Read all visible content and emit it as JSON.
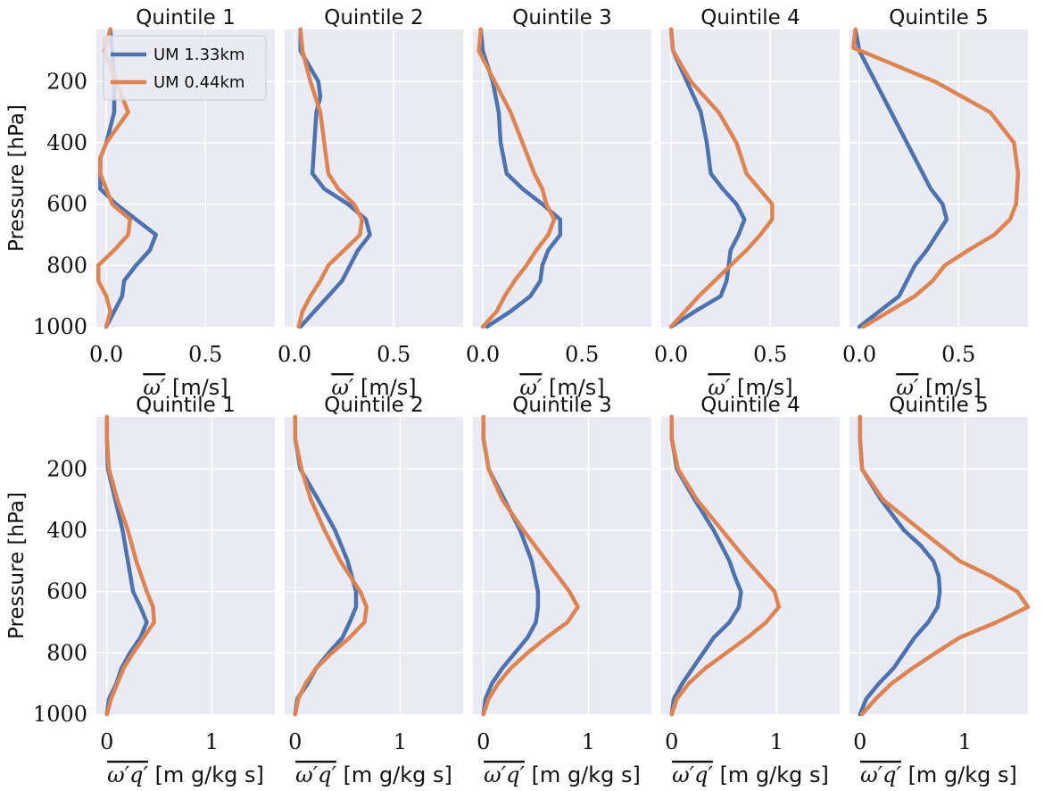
{
  "colors": {
    "um133": "#4c72b0",
    "um044": "#dd8452",
    "panel_bg": "#eaeaf2",
    "grid": "#ffffff"
  },
  "legend": [
    "UM 1.33km",
    "UM 0.44km"
  ],
  "panel_titles": [
    "Quintile 1",
    "Quintile 2",
    "Quintile 3",
    "Quintile 4",
    "Quintile 5"
  ],
  "rows": [
    {
      "ylabel": "Pressure [hPa]",
      "xlabel_symbol": "ω′",
      "xlabel_unit": "[m/s]",
      "xticks": [
        "0.0",
        "0.5"
      ]
    },
    {
      "ylabel": "Pressure [hPa]",
      "xlabel_symbol": "ω′q′",
      "xlabel_unit": "[m g/kg s]",
      "xticks": [
        "0",
        "1"
      ]
    }
  ],
  "yticks": [
    "200",
    "400",
    "600",
    "800",
    "1000"
  ],
  "chart_data": [
    {
      "type": "line",
      "title": "Quintile 1",
      "ylabel": "Pressure [hPa]",
      "xlabel": "ω′ [m/s]",
      "xlim": [
        -0.05,
        0.85
      ],
      "ylim": [
        1000,
        30
      ],
      "xticks": [
        0.0,
        0.5
      ],
      "yticks": [
        200,
        400,
        600,
        800,
        1000
      ],
      "series": [
        {
          "name": "UM 1.33km",
          "pressure": [
            30,
            100,
            200,
            300,
            400,
            450,
            500,
            550,
            600,
            650,
            700,
            750,
            800,
            850,
            900,
            950,
            1000
          ],
          "values": [
            0.02,
            0.03,
            0.04,
            0.04,
            0.0,
            -0.03,
            -0.03,
            -0.03,
            0.05,
            0.15,
            0.25,
            0.22,
            0.15,
            0.09,
            0.08,
            0.04,
            0.0
          ]
        },
        {
          "name": "UM 0.44km",
          "pressure": [
            30,
            100,
            200,
            300,
            400,
            450,
            500,
            550,
            600,
            650,
            700,
            750,
            800,
            850,
            900,
            950,
            1000
          ],
          "values": [
            0.02,
            -0.01,
            0.05,
            0.11,
            0.0,
            -0.03,
            -0.03,
            0.0,
            0.03,
            0.12,
            0.11,
            0.04,
            -0.04,
            -0.04,
            0.0,
            0.02,
            0.0
          ]
        }
      ]
    },
    {
      "type": "line",
      "title": "Quintile 2",
      "xlabel": "ω′ [m/s]",
      "xlim": [
        -0.05,
        0.85
      ],
      "ylim": [
        1000,
        30
      ],
      "xticks": [
        0.0,
        0.5
      ],
      "series": [
        {
          "name": "UM 1.33km",
          "pressure": [
            30,
            100,
            200,
            250,
            300,
            400,
            500,
            550,
            600,
            650,
            700,
            750,
            800,
            850,
            900,
            950,
            1000
          ],
          "values": [
            0.03,
            0.03,
            0.12,
            0.13,
            0.11,
            0.1,
            0.09,
            0.15,
            0.27,
            0.36,
            0.38,
            0.32,
            0.28,
            0.24,
            0.17,
            0.1,
            0.03
          ]
        },
        {
          "name": "UM 0.44km",
          "pressure": [
            30,
            100,
            200,
            300,
            400,
            500,
            550,
            600,
            650,
            700,
            750,
            800,
            850,
            900,
            950,
            1000
          ],
          "values": [
            0.03,
            0.04,
            0.08,
            0.13,
            0.15,
            0.17,
            0.22,
            0.3,
            0.34,
            0.33,
            0.25,
            0.17,
            0.13,
            0.08,
            0.04,
            0.02
          ]
        }
      ]
    },
    {
      "type": "line",
      "title": "Quintile 3",
      "xlabel": "ω′ [m/s]",
      "xlim": [
        -0.05,
        0.85
      ],
      "ylim": [
        1000,
        30
      ],
      "xticks": [
        0.0,
        0.5
      ],
      "series": [
        {
          "name": "UM 1.33km",
          "pressure": [
            30,
            100,
            200,
            300,
            400,
            500,
            550,
            600,
            650,
            700,
            750,
            800,
            850,
            900,
            950,
            1000
          ],
          "values": [
            -0.01,
            0.0,
            0.05,
            0.08,
            0.09,
            0.12,
            0.2,
            0.3,
            0.39,
            0.39,
            0.33,
            0.3,
            0.29,
            0.24,
            0.14,
            0.02
          ]
        },
        {
          "name": "UM 0.44km",
          "pressure": [
            30,
            100,
            200,
            300,
            400,
            500,
            550,
            600,
            650,
            700,
            750,
            800,
            850,
            900,
            950,
            1000
          ],
          "values": [
            -0.01,
            -0.02,
            0.06,
            0.14,
            0.2,
            0.26,
            0.3,
            0.32,
            0.36,
            0.33,
            0.27,
            0.22,
            0.16,
            0.11,
            0.07,
            0.0
          ]
        }
      ]
    },
    {
      "type": "line",
      "title": "Quintile 4",
      "xlabel": "ω′ [m/s]",
      "xlim": [
        -0.05,
        0.85
      ],
      "ylim": [
        1000,
        30
      ],
      "xticks": [
        0.0,
        0.5
      ],
      "series": [
        {
          "name": "UM 1.33km",
          "pressure": [
            30,
            100,
            200,
            300,
            400,
            500,
            550,
            600,
            650,
            700,
            750,
            800,
            850,
            900,
            950,
            1000
          ],
          "values": [
            0.0,
            0.01,
            0.08,
            0.15,
            0.18,
            0.2,
            0.26,
            0.33,
            0.37,
            0.34,
            0.3,
            0.29,
            0.28,
            0.25,
            0.12,
            0.0
          ]
        },
        {
          "name": "UM 0.44km",
          "pressure": [
            30,
            100,
            200,
            300,
            400,
            500,
            600,
            650,
            700,
            750,
            800,
            850,
            900,
            950,
            1000
          ],
          "values": [
            0.0,
            0.01,
            0.1,
            0.24,
            0.33,
            0.38,
            0.51,
            0.51,
            0.45,
            0.38,
            0.3,
            0.22,
            0.14,
            0.07,
            0.0
          ]
        }
      ]
    },
    {
      "type": "line",
      "title": "Quintile 5",
      "xlabel": "ω′ [m/s]",
      "xlim": [
        -0.05,
        0.85
      ],
      "ylim": [
        1000,
        30
      ],
      "xticks": [
        0.0,
        0.5
      ],
      "series": [
        {
          "name": "UM 1.33km",
          "pressure": [
            30,
            100,
            200,
            300,
            400,
            500,
            550,
            600,
            650,
            700,
            750,
            800,
            850,
            900,
            950,
            1000
          ],
          "values": [
            -0.02,
            0.0,
            0.08,
            0.16,
            0.24,
            0.32,
            0.36,
            0.42,
            0.44,
            0.39,
            0.34,
            0.28,
            0.24,
            0.2,
            0.1,
            0.0
          ]
        },
        {
          "name": "UM 0.44km",
          "pressure": [
            30,
            90,
            200,
            300,
            400,
            500,
            600,
            650,
            700,
            750,
            800,
            850,
            900,
            950,
            1000
          ],
          "values": [
            -0.02,
            -0.03,
            0.38,
            0.66,
            0.78,
            0.8,
            0.79,
            0.76,
            0.68,
            0.55,
            0.43,
            0.37,
            0.28,
            0.15,
            0.02
          ]
        }
      ]
    },
    {
      "type": "line",
      "title": "Quintile 1",
      "ylabel": "Pressure [hPa]",
      "xlabel": "ω′q′ [m g/kg s]",
      "xlim": [
        -0.1,
        1.6
      ],
      "ylim": [
        1000,
        30
      ],
      "xticks": [
        0,
        1
      ],
      "yticks": [
        200,
        400,
        600,
        800,
        1000
      ],
      "series": [
        {
          "name": "UM 1.33km",
          "pressure": [
            30,
            100,
            200,
            300,
            400,
            500,
            600,
            650,
            700,
            750,
            800,
            850,
            900,
            950,
            1000
          ],
          "values": [
            0.0,
            0.0,
            0.01,
            0.08,
            0.15,
            0.2,
            0.25,
            0.32,
            0.38,
            0.32,
            0.22,
            0.14,
            0.09,
            0.02,
            0.0
          ]
        },
        {
          "name": "UM 0.44km",
          "pressure": [
            30,
            100,
            200,
            300,
            400,
            500,
            600,
            650,
            700,
            750,
            800,
            850,
            900,
            950,
            1000
          ],
          "values": [
            0.0,
            0.0,
            0.02,
            0.1,
            0.2,
            0.28,
            0.38,
            0.44,
            0.45,
            0.35,
            0.25,
            0.16,
            0.1,
            0.04,
            0.0
          ]
        }
      ]
    },
    {
      "type": "line",
      "title": "Quintile 2",
      "xlabel": "ω′q′ [m g/kg s]",
      "xlim": [
        -0.1,
        1.6
      ],
      "ylim": [
        1000,
        30
      ],
      "xticks": [
        0,
        1
      ],
      "series": [
        {
          "name": "UM 1.33km",
          "pressure": [
            30,
            100,
            200,
            300,
            400,
            500,
            600,
            650,
            700,
            750,
            800,
            850,
            900,
            950,
            1000
          ],
          "values": [
            0.0,
            0.0,
            0.05,
            0.22,
            0.38,
            0.5,
            0.58,
            0.58,
            0.52,
            0.45,
            0.32,
            0.2,
            0.12,
            0.02,
            0.0
          ]
        },
        {
          "name": "UM 0.44km",
          "pressure": [
            30,
            100,
            200,
            300,
            400,
            500,
            600,
            650,
            700,
            750,
            800,
            850,
            900,
            950,
            1000
          ],
          "values": [
            0.0,
            0.0,
            0.06,
            0.15,
            0.28,
            0.43,
            0.62,
            0.68,
            0.66,
            0.52,
            0.35,
            0.2,
            0.1,
            0.03,
            0.0
          ]
        }
      ]
    },
    {
      "type": "line",
      "title": "Quintile 3",
      "xlabel": "ω′q′ [m g/kg s]",
      "xlim": [
        -0.1,
        1.6
      ],
      "ylim": [
        1000,
        30
      ],
      "xticks": [
        0,
        1
      ],
      "series": [
        {
          "name": "UM 1.33km",
          "pressure": [
            30,
            100,
            200,
            300,
            400,
            500,
            600,
            650,
            700,
            750,
            800,
            850,
            900,
            950,
            1000
          ],
          "values": [
            0.0,
            0.0,
            0.05,
            0.2,
            0.35,
            0.46,
            0.52,
            0.52,
            0.5,
            0.42,
            0.3,
            0.18,
            0.08,
            0.02,
            0.0
          ]
        },
        {
          "name": "UM 0.44km",
          "pressure": [
            30,
            100,
            200,
            300,
            400,
            500,
            600,
            650,
            700,
            750,
            800,
            850,
            900,
            950,
            1000
          ],
          "values": [
            0.0,
            0.0,
            0.05,
            0.18,
            0.38,
            0.6,
            0.82,
            0.9,
            0.8,
            0.6,
            0.42,
            0.26,
            0.14,
            0.05,
            0.0
          ]
        }
      ]
    },
    {
      "type": "line",
      "title": "Quintile 4",
      "xlabel": "ω′q′ [m g/kg s]",
      "xlim": [
        -0.1,
        1.6
      ],
      "ylim": [
        1000,
        30
      ],
      "xticks": [
        0,
        1
      ],
      "series": [
        {
          "name": "UM 1.33km",
          "pressure": [
            30,
            100,
            200,
            300,
            400,
            500,
            550,
            600,
            650,
            700,
            750,
            800,
            850,
            900,
            950,
            1000
          ],
          "values": [
            0.0,
            0.0,
            0.05,
            0.22,
            0.4,
            0.55,
            0.6,
            0.66,
            0.64,
            0.55,
            0.4,
            0.3,
            0.2,
            0.1,
            0.02,
            0.0
          ]
        },
        {
          "name": "UM 0.44km",
          "pressure": [
            30,
            100,
            200,
            300,
            400,
            500,
            600,
            650,
            700,
            750,
            800,
            850,
            900,
            950,
            1000
          ],
          "values": [
            0.0,
            0.0,
            0.06,
            0.24,
            0.48,
            0.72,
            0.98,
            1.02,
            0.9,
            0.72,
            0.52,
            0.32,
            0.16,
            0.05,
            0.0
          ]
        }
      ]
    },
    {
      "type": "line",
      "title": "Quintile 5",
      "xlabel": "ω′q′ [m g/kg s]",
      "xlim": [
        -0.1,
        1.6
      ],
      "ylim": [
        1000,
        30
      ],
      "xticks": [
        0,
        1
      ],
      "series": [
        {
          "name": "UM 1.33km",
          "pressure": [
            30,
            100,
            200,
            300,
            400,
            450,
            500,
            550,
            600,
            650,
            700,
            750,
            800,
            850,
            900,
            950,
            1000
          ],
          "values": [
            0.0,
            0.0,
            0.02,
            0.2,
            0.42,
            0.58,
            0.7,
            0.75,
            0.76,
            0.74,
            0.65,
            0.52,
            0.42,
            0.32,
            0.18,
            0.06,
            0.0
          ]
        },
        {
          "name": "UM 0.44km",
          "pressure": [
            30,
            100,
            200,
            300,
            400,
            500,
            550,
            600,
            650,
            700,
            750,
            800,
            850,
            900,
            950,
            1000
          ],
          "values": [
            0.0,
            0.0,
            0.02,
            0.22,
            0.58,
            0.95,
            1.25,
            1.5,
            1.6,
            1.3,
            0.95,
            0.72,
            0.5,
            0.3,
            0.15,
            0.02
          ]
        }
      ]
    }
  ]
}
